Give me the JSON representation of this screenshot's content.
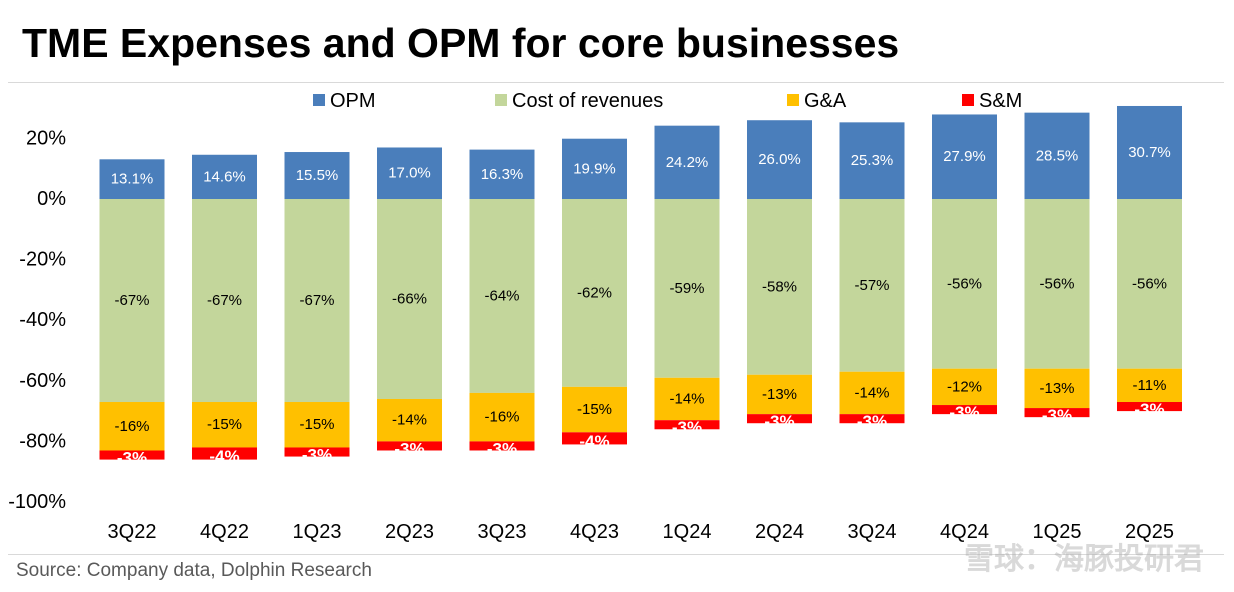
{
  "title": "TME Expenses and OPM for core businesses",
  "source": "Source: Company data, Dolphin Research",
  "watermark": "雪球：海豚投研君",
  "colors": {
    "OPM": "#4a7ebb",
    "Cost of revenues": "#c3d69b",
    "G&A": "#ffc000",
    "S&M": "#ff0000"
  },
  "chart_data": {
    "type": "bar",
    "stacked": true,
    "categories": [
      "3Q22",
      "4Q22",
      "1Q23",
      "2Q23",
      "3Q23",
      "4Q23",
      "1Q24",
      "2Q24",
      "3Q24",
      "4Q24",
      "1Q25",
      "2Q25"
    ],
    "series": [
      {
        "name": "OPM",
        "values": [
          13.1,
          14.6,
          15.5,
          17.0,
          16.3,
          19.9,
          24.2,
          26.0,
          25.3,
          27.9,
          28.5,
          30.7
        ],
        "labels": [
          "13.1%",
          "14.6%",
          "15.5%",
          "17.0%",
          "16.3%",
          "19.9%",
          "24.2%",
          "26.0%",
          "25.3%",
          "27.9%",
          "28.5%",
          "30.7%"
        ]
      },
      {
        "name": "Cost of revenues",
        "values": [
          -67,
          -67,
          -67,
          -66,
          -64,
          -62,
          -59,
          -58,
          -57,
          -56,
          -56,
          -56
        ],
        "labels": [
          "-67%",
          "-67%",
          "-67%",
          "-66%",
          "-64%",
          "-62%",
          "-59%",
          "-58%",
          "-57%",
          "-56%",
          "-56%",
          "-56%"
        ]
      },
      {
        "name": "G&A",
        "values": [
          -16,
          -15,
          -15,
          -14,
          -16,
          -15,
          -14,
          -13,
          -14,
          -12,
          -13,
          -11
        ],
        "labels": [
          "-16%",
          "-15%",
          "-15%",
          "-14%",
          "-16%",
          "-15%",
          "-14%",
          "-13%",
          "-14%",
          "-12%",
          "-13%",
          "-11%"
        ]
      },
      {
        "name": "S&M",
        "values": [
          -3,
          -4,
          -3,
          -3,
          -3,
          -4,
          -3,
          -3,
          -3,
          -3,
          -3,
          -3
        ],
        "labels": [
          "-3%",
          "-4%",
          "-3%",
          "-3%",
          "-3%",
          "-4%",
          "-3%",
          "-3%",
          "-3%",
          "-3%",
          "-3%",
          "-3%"
        ]
      }
    ],
    "y_ticks": [
      20,
      0,
      -20,
      -40,
      -60,
      -80,
      -100
    ],
    "y_tick_labels": [
      "20%",
      "0%",
      "-20%",
      "-40%",
      "-60%",
      "-80%",
      "-100%"
    ],
    "ylim": [
      -100,
      30
    ],
    "legend_position": "top",
    "grid": false
  }
}
